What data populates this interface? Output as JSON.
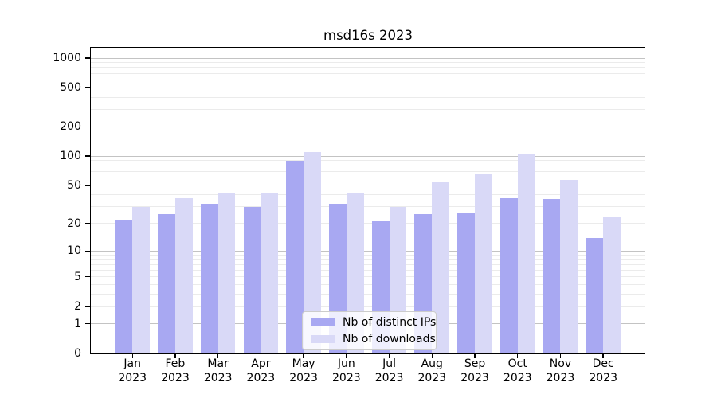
{
  "chart_data": {
    "type": "bar",
    "title": "msd16s 2023",
    "year": "2023",
    "categories": [
      "Jan",
      "Feb",
      "Mar",
      "Apr",
      "May",
      "Jun",
      "Jul",
      "Aug",
      "Sep",
      "Oct",
      "Nov",
      "Dec"
    ],
    "series": [
      {
        "name": "Nb of distinct IPs",
        "color": "#a8a8f2",
        "values": [
          22,
          25,
          32,
          30,
          90,
          32,
          21,
          25,
          26,
          37,
          36,
          14
        ]
      },
      {
        "name": "Nb of downloads",
        "color": "#d9d9f7",
        "values": [
          30,
          37,
          41,
          41,
          110,
          41,
          30,
          54,
          65,
          107,
          57,
          23
        ]
      }
    ],
    "yticks": [
      1000,
      500,
      200,
      100,
      50,
      20,
      10,
      5,
      2,
      1,
      0
    ],
    "scale": "log1p",
    "ylim": [
      0,
      1000
    ],
    "grid": "both",
    "legend_position": "lower-center",
    "colors": {
      "major_grid": "#c3c3c3",
      "minor_grid": "#ebebeb",
      "spine": "#000000"
    }
  }
}
